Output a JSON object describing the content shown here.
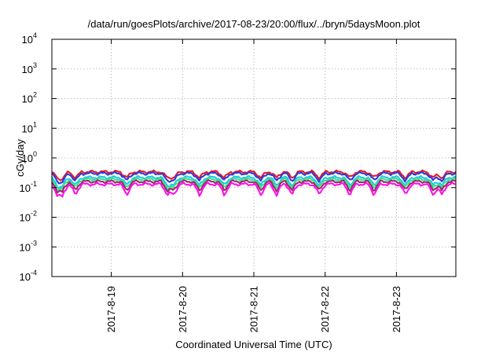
{
  "chart_data": {
    "type": "line",
    "title": "/data/run/goesPlots/archive/2017-08-23/20:00/flux/../bryn/5daysMoon.plot",
    "xlabel": "Coordinated Universal Time (UTC)",
    "ylabel": "cGy/day",
    "y_scale": "log",
    "ylim": [
      0.0001,
      10000
    ],
    "y_ticks": [
      {
        "value": 0.0001,
        "base": "10",
        "exp": "-4"
      },
      {
        "value": 0.001,
        "base": "10",
        "exp": "-3"
      },
      {
        "value": 0.01,
        "base": "10",
        "exp": "-2"
      },
      {
        "value": 0.1,
        "base": "10",
        "exp": "-1"
      },
      {
        "value": 1,
        "base": "10",
        "exp": "0"
      },
      {
        "value": 10,
        "base": "10",
        "exp": "1"
      },
      {
        "value": 100,
        "base": "10",
        "exp": "2"
      },
      {
        "value": 1000,
        "base": "10",
        "exp": "3"
      },
      {
        "value": 10000,
        "base": "10",
        "exp": "4"
      }
    ],
    "x_range": [
      "2017-08-18 04:00",
      "2017-08-23 20:00"
    ],
    "x_ticks": [
      "2017-8-19",
      "2017-8-20",
      "2017-8-21",
      "2017-8-22",
      "2017-8-23"
    ],
    "grid": true,
    "series": [
      {
        "color": "#e8192c",
        "base": 0.34,
        "dip": 0.62
      },
      {
        "color": "#2e3bd6",
        "base": 0.3,
        "dip": 0.55
      },
      {
        "color": "#1ec8e8",
        "base": 0.22,
        "dip": 0.52
      },
      {
        "color": "#3fe08a",
        "base": 0.19,
        "dip": 0.5
      },
      {
        "color": "#9a2a6a",
        "base": 0.16,
        "dip": 0.48
      },
      {
        "color": "#ff10e6",
        "base": 0.13,
        "dip": 0.42
      }
    ],
    "dip_days": [
      0.08,
      0.15,
      0.33,
      1.05,
      1.62,
      1.71,
      2.07,
      2.42,
      2.93,
      3.15,
      3.37,
      3.75,
      4.18,
      4.52,
      4.96,
      5.35,
      5.47
    ]
  }
}
